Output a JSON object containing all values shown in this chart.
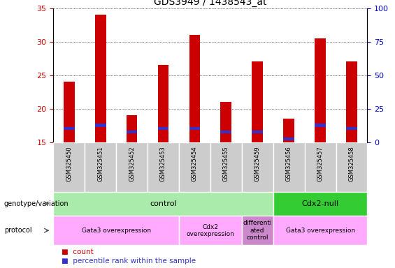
{
  "title": "GDS3949 / 1438543_at",
  "samples": [
    "GSM325450",
    "GSM325451",
    "GSM325452",
    "GSM325453",
    "GSM325454",
    "GSM325455",
    "GSM325459",
    "GSM325456",
    "GSM325457",
    "GSM325458"
  ],
  "count_values": [
    24.0,
    34.0,
    19.0,
    26.5,
    31.0,
    21.0,
    27.0,
    18.5,
    30.5,
    27.0
  ],
  "percentile_values": [
    17.0,
    17.5,
    16.5,
    17.0,
    17.0,
    16.5,
    16.5,
    15.5,
    17.5,
    17.0
  ],
  "ylim_left": [
    15,
    35
  ],
  "ylim_right": [
    0,
    100
  ],
  "yticks_left": [
    15,
    20,
    25,
    30,
    35
  ],
  "yticks_right": [
    0,
    25,
    50,
    75,
    100
  ],
  "bar_color_count": "#cc0000",
  "bar_color_percentile": "#3333cc",
  "bar_width": 0.35,
  "genotype_groups": [
    {
      "label": "control",
      "start": 0,
      "end": 7,
      "color": "#aaeaaa"
    },
    {
      "label": "Cdx2-null",
      "start": 7,
      "end": 10,
      "color": "#33cc33"
    }
  ],
  "protocol_groups": [
    {
      "label": "Gata3 overexpression",
      "start": 0,
      "end": 4,
      "color": "#ffaaff"
    },
    {
      "label": "Cdx2\noverexpression",
      "start": 4,
      "end": 6,
      "color": "#ffaaff"
    },
    {
      "label": "differenti\nated\ncontrol",
      "start": 6,
      "end": 7,
      "color": "#cc88cc"
    },
    {
      "label": "Gata3 overexpression",
      "start": 7,
      "end": 10,
      "color": "#ffaaff"
    }
  ],
  "legend_items": [
    {
      "label": "count",
      "color": "#cc0000"
    },
    {
      "label": "percentile rank within the sample",
      "color": "#3333cc"
    }
  ],
  "tick_color_left": "#cc0000",
  "tick_color_right": "#0000cc",
  "bg_color": "#ffffff",
  "sample_bg_color": "#cccccc",
  "sample_border_color": "#ffffff"
}
